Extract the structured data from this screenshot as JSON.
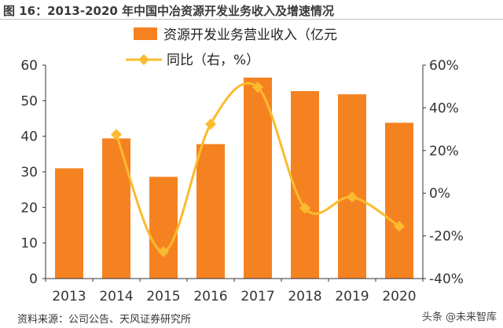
{
  "title": "图 16：2013-2020 年中国中冶资源开发业务收入及增速情况",
  "source": "资料来源：公司公告、天风证券研究所",
  "watermark": "头条 @未来智库",
  "chart_data": {
    "type": "bar+line",
    "categories": [
      "2013",
      "2014",
      "2015",
      "2016",
      "2017",
      "2018",
      "2019",
      "2020"
    ],
    "series": [
      {
        "name": "资源开发业务营业收入（亿元",
        "type": "bar",
        "axis": "left",
        "color": "#F58220",
        "values": [
          31.0,
          39.4,
          28.6,
          37.8,
          56.5,
          52.7,
          51.8,
          43.8
        ]
      },
      {
        "name": "同比（右，%）",
        "type": "line",
        "axis": "right",
        "color": "#FBBB2F",
        "values": [
          null,
          27.5,
          -27.4,
          32.4,
          49.6,
          -7.0,
          -1.8,
          -15.5
        ]
      }
    ],
    "left_axis": {
      "ylim": [
        0,
        60
      ],
      "ticks": [
        "0",
        "10",
        "20",
        "30",
        "40",
        "50",
        "60"
      ]
    },
    "right_axis": {
      "ylim": [
        -40,
        60
      ],
      "ticks": [
        "-40%",
        "-20%",
        "0%",
        "20%",
        "40%",
        "60%"
      ]
    },
    "grid": false,
    "legend": "top-center"
  }
}
